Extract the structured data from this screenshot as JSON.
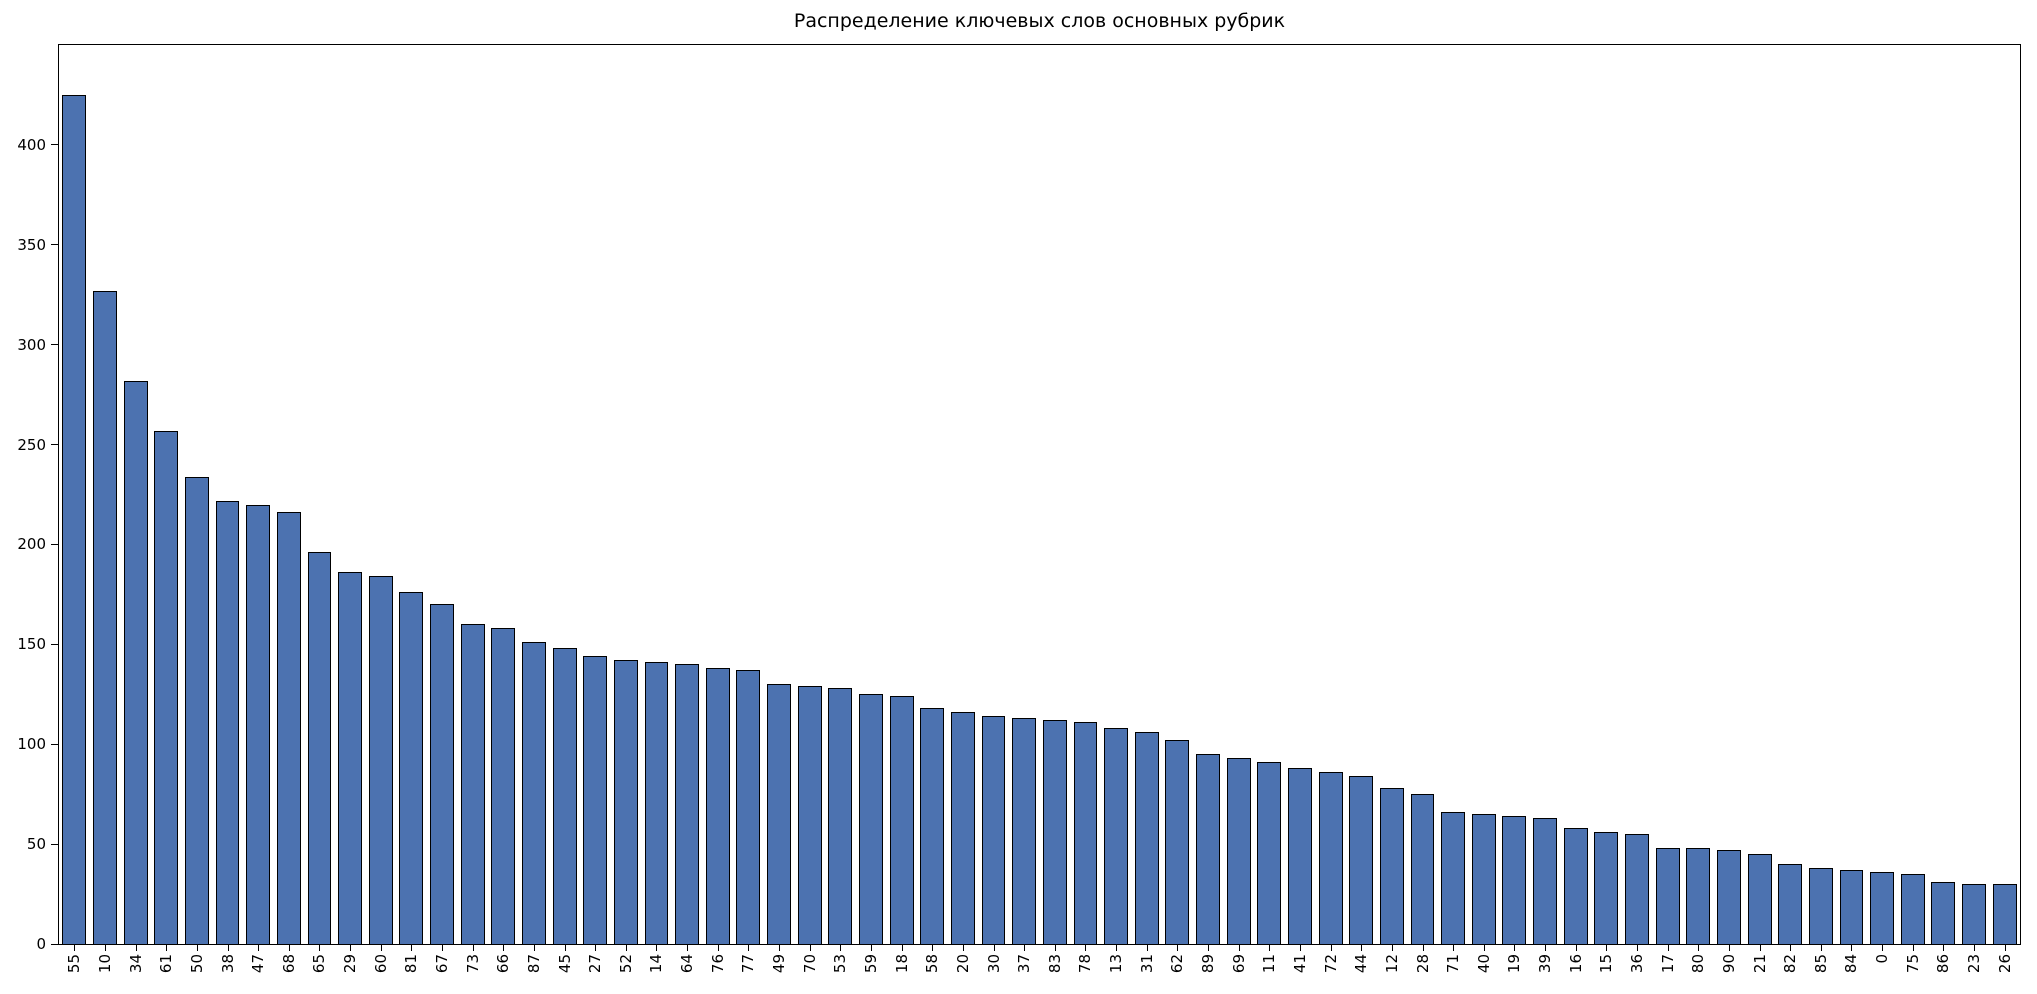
{
  "figure": {
    "background_color": "#ffffff",
    "axes_border_color": "#000000"
  },
  "chart_data": {
    "type": "bar",
    "title": "Распределение ключевых слов основных рубрик",
    "xlabel": "",
    "ylabel": "",
    "categories": [
      "55",
      "10",
      "34",
      "61",
      "50",
      "38",
      "47",
      "68",
      "65",
      "29",
      "60",
      "81",
      "67",
      "73",
      "66",
      "87",
      "45",
      "27",
      "52",
      "14",
      "64",
      "76",
      "77",
      "49",
      "70",
      "53",
      "59",
      "18",
      "58",
      "20",
      "30",
      "37",
      "83",
      "78",
      "13",
      "31",
      "62",
      "89",
      "69",
      "11",
      "41",
      "72",
      "44",
      "12",
      "28",
      "71",
      "40",
      "19",
      "39",
      "16",
      "15",
      "36",
      "17",
      "80",
      "90",
      "21",
      "82",
      "85",
      "84",
      "0",
      "75",
      "86",
      "23",
      "26"
    ],
    "values": [
      425,
      327,
      282,
      257,
      234,
      222,
      220,
      216,
      196,
      186,
      184,
      176,
      170,
      160,
      158,
      151,
      148,
      144,
      142,
      141,
      140,
      138,
      137,
      130,
      129,
      128,
      125,
      124,
      118,
      116,
      114,
      113,
      112,
      111,
      108,
      106,
      102,
      95,
      93,
      91,
      88,
      86,
      84,
      78,
      75,
      66,
      65,
      64,
      63,
      58,
      56,
      55,
      48,
      48,
      47,
      45,
      40,
      38,
      37,
      36,
      35,
      31,
      30,
      30
    ],
    "ylim": [
      0,
      450
    ],
    "yticks": [
      0,
      50,
      100,
      150,
      200,
      250,
      300,
      350,
      400
    ],
    "bar_color": "#4c72b0",
    "bar_edge_color": "#000000",
    "grid": false,
    "legend": "none",
    "x_tick_rotation": 90
  }
}
